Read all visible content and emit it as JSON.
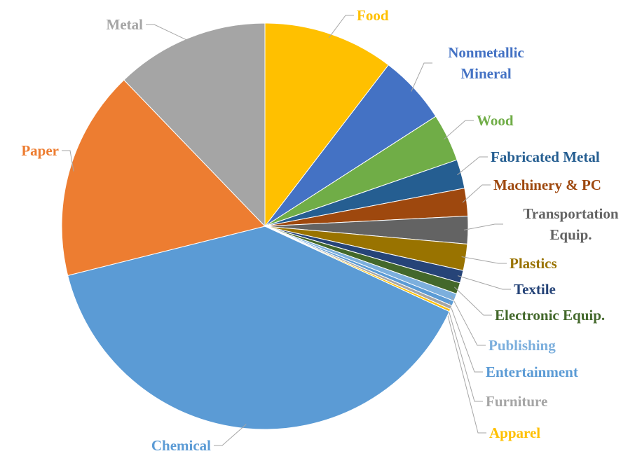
{
  "chart_data": {
    "type": "pie",
    "categories": [
      "Food",
      "Nonmetallic Mineral",
      "Wood",
      "Fabricated Metal",
      "Machinery & PC",
      "Transportation Equip.",
      "Plastics",
      "Textile",
      "Electronic Equip.",
      "Publishing",
      "Entertainment",
      "Furniture",
      "Apparel",
      "Chemical",
      "Paper",
      "Metal"
    ],
    "values": [
      10.4,
      5.5,
      3.8,
      2.3,
      2.2,
      2.2,
      2.1,
      1.0,
      0.9,
      0.6,
      0.4,
      0.3,
      0.2,
      39.2,
      16.7,
      12.2
    ],
    "colors": [
      "#ffc000",
      "#4472c4",
      "#70ad47",
      "#255e91",
      "#9e480e",
      "#636363",
      "#997300",
      "#264478",
      "#43682b",
      "#7cafdd",
      "#5b9bd5",
      "#a5a5a5",
      "#ffc000",
      "#5b9bd5",
      "#ed7d31",
      "#a5a5a5"
    ]
  }
}
